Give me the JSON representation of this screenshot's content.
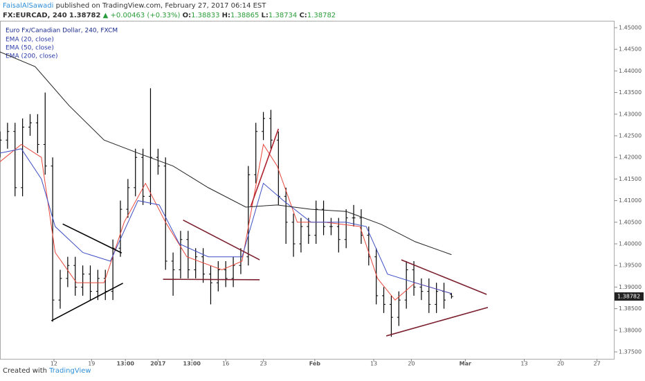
{
  "header": {
    "author": "FaisalAlSawadi",
    "published": " published on TradingView.com, February 27, 2017 06:14 EST",
    "symbol": "FX:EURCAD, 240",
    "last": "1.38782",
    "change": "▲ +0.00463 (+0.33%)",
    "open_label": "O:",
    "open": "1.38833",
    "high_label": "H:",
    "high": "1.38865",
    "low_label": "L:",
    "low": "1.38734",
    "close_label": "C:",
    "close": "1.38782"
  },
  "footer": {
    "created": "Created with",
    "brand": "TradingView"
  },
  "chart_data": {
    "type": "ohlc",
    "title": "Euro Fx/Canadian Dollar, 240, FXCM",
    "color": "#000000",
    "x": [
      0,
      6,
      12,
      18,
      24,
      30,
      36,
      42,
      48,
      54,
      60,
      66,
      72,
      78,
      84,
      90,
      96,
      102,
      108,
      114,
      120,
      126,
      132,
      138,
      144,
      150,
      156,
      162,
      168,
      174,
      180,
      186,
      192,
      198,
      204,
      210,
      216,
      222,
      228,
      234,
      240,
      246,
      252,
      258,
      264,
      270,
      276,
      282,
      288,
      294,
      300,
      306,
      312,
      318,
      324,
      330,
      336,
      342,
      348,
      354,
      360
    ],
    "open": [
      1.422,
      1.424,
      1.426,
      1.413,
      1.427,
      1.428,
      1.423,
      1.418,
      1.387,
      1.392,
      1.395,
      1.39,
      1.393,
      1.389,
      1.392,
      1.389,
      1.399,
      1.408,
      1.413,
      1.42,
      1.411,
      1.42,
      1.418,
      1.396,
      1.394,
      1.401,
      1.394,
      1.397,
      1.393,
      1.391,
      1.394,
      1.392,
      1.395,
      1.397,
      1.416,
      1.426,
      1.429,
      1.424,
      1.411,
      1.405,
      1.4,
      1.404,
      1.402,
      1.408,
      1.404,
      1.404,
      1.401,
      1.406,
      1.406,
      1.402,
      1.397,
      1.388,
      1.386,
      1.383,
      1.387,
      1.394,
      1.39,
      1.389,
      1.386,
      1.389,
      1.38833
    ],
    "high": [
      1.426,
      1.428,
      1.428,
      1.429,
      1.43,
      1.43,
      1.435,
      1.42,
      1.394,
      1.397,
      1.397,
      1.395,
      1.395,
      1.394,
      1.394,
      1.401,
      1.41,
      1.415,
      1.422,
      1.422,
      1.436,
      1.422,
      1.42,
      1.398,
      1.403,
      1.403,
      1.399,
      1.399,
      1.395,
      1.396,
      1.396,
      1.397,
      1.399,
      1.418,
      1.428,
      1.4305,
      1.431,
      1.426,
      1.413,
      1.407,
      1.406,
      1.406,
      1.41,
      1.41,
      1.406,
      1.406,
      1.408,
      1.409,
      1.408,
      1.404,
      1.399,
      1.39,
      1.388,
      1.389,
      1.396,
      1.396,
      1.392,
      1.392,
      1.391,
      1.391,
      1.38865
    ],
    "low": [
      1.42,
      1.422,
      1.411,
      1.411,
      1.425,
      1.421,
      1.416,
      1.382,
      1.385,
      1.39,
      1.388,
      1.388,
      1.387,
      1.387,
      1.387,
      1.387,
      1.397,
      1.406,
      1.411,
      1.409,
      1.409,
      1.416,
      1.394,
      1.388,
      1.392,
      1.392,
      1.392,
      1.391,
      1.386,
      1.389,
      1.39,
      1.39,
      1.393,
      1.395,
      1.414,
      1.424,
      1.422,
      1.409,
      1.4,
      1.397,
      1.398,
      1.4,
      1.4,
      1.402,
      1.402,
      1.398,
      1.399,
      1.404,
      1.4,
      1.395,
      1.386,
      1.384,
      1.3785,
      1.381,
      1.385,
      1.388,
      1.387,
      1.384,
      1.384,
      1.385,
      1.38734
    ],
    "close": [
      1.424,
      1.426,
      1.413,
      1.427,
      1.428,
      1.423,
      1.418,
      1.387,
      1.392,
      1.395,
      1.39,
      1.393,
      1.389,
      1.392,
      1.389,
      1.399,
      1.408,
      1.413,
      1.42,
      1.411,
      1.42,
      1.418,
      1.396,
      1.394,
      1.401,
      1.394,
      1.397,
      1.393,
      1.391,
      1.394,
      1.392,
      1.395,
      1.397,
      1.416,
      1.426,
      1.429,
      1.424,
      1.411,
      1.405,
      1.4,
      1.404,
      1.402,
      1.408,
      1.404,
      1.404,
      1.401,
      1.406,
      1.406,
      1.402,
      1.397,
      1.388,
      1.386,
      1.383,
      1.387,
      1.394,
      1.39,
      1.389,
      1.386,
      1.389,
      1.387,
      1.38782
    ],
    "last_price": 1.38782,
    "series": [
      {
        "name": "EMA (20, close)",
        "color": "#e8463b",
        "x": [
          0,
          17,
          33,
          44,
          61,
          83,
          99,
          116,
          132,
          149,
          177,
          193,
          210,
          221,
          237,
          259,
          287,
          301,
          315,
          331,
          360
        ],
        "values": [
          1.419,
          1.423,
          1.42,
          1.398,
          1.391,
          1.391,
          1.405,
          1.414,
          1.405,
          1.397,
          1.394,
          1.396,
          1.423,
          1.418,
          1.405,
          1.405,
          1.404,
          1.392,
          1.387,
          1.391,
          1.3885
        ]
      },
      {
        "name": "EMA (50, close)",
        "color": "#3d4fc4",
        "x": [
          0,
          17,
          33,
          44,
          66,
          88,
          110,
          127,
          143,
          166,
          193,
          210,
          226,
          248,
          276,
          292,
          309,
          331,
          360
        ],
        "values": [
          1.421,
          1.422,
          1.415,
          1.404,
          1.398,
          1.396,
          1.41,
          1.409,
          1.4,
          1.397,
          1.397,
          1.414,
          1.41,
          1.405,
          1.405,
          1.404,
          1.393,
          1.391,
          1.3885
        ]
      },
      {
        "name": "EMA (200, close)",
        "color": "#222222",
        "x": [
          0,
          28,
          55,
          83,
          110,
          138,
          166,
          196,
          221,
          248,
          276,
          304,
          331,
          360
        ],
        "values": [
          1.4444,
          1.441,
          1.432,
          1.424,
          1.421,
          1.418,
          1.413,
          1.4085,
          1.409,
          1.408,
          1.4075,
          1.4045,
          1.4005,
          1.3975
        ]
      }
    ],
    "drawings": [
      {
        "color": "#000000",
        "x": [
          50,
          97
        ],
        "y": [
          1.4046,
          1.3979
        ]
      },
      {
        "color": "#000000",
        "x": [
          41,
          98
        ],
        "y": [
          1.3822,
          1.3909
        ]
      },
      {
        "color": "#7b1f2e",
        "x": [
          146,
          207
        ],
        "y": [
          1.4055,
          1.3963
        ]
      },
      {
        "color": "#7b1f2e",
        "x": [
          130,
          207
        ],
        "y": [
          1.3918,
          1.3917
        ]
      },
      {
        "color": "#b0202e",
        "x": [
          200,
          222
        ],
        "y": [
          1.4087,
          1.4266
        ]
      },
      {
        "color": "#7b1f2e",
        "x": [
          320,
          388
        ],
        "y": [
          1.3963,
          1.3883
        ]
      },
      {
        "color": "#7b1f2e",
        "x": [
          308,
          389
        ],
        "y": [
          1.3787,
          1.3853
        ]
      }
    ],
    "xlim": [
      0,
      490
    ],
    "ylim": [
      1.3734,
      1.4516
    ],
    "xticks": [
      {
        "value": 43,
        "label": "12"
      },
      {
        "value": 73,
        "label": "19"
      },
      {
        "value": 100,
        "label": "13:00"
      },
      {
        "value": 126,
        "label": "2017"
      },
      {
        "value": 153,
        "label": "13:00"
      },
      {
        "value": 180,
        "label": "16"
      },
      {
        "value": 210,
        "label": "23"
      },
      {
        "value": 251,
        "label": "Feb"
      },
      {
        "value": 298,
        "label": "13"
      },
      {
        "value": 328,
        "label": "20"
      },
      {
        "value": 371,
        "label": "Mar"
      },
      {
        "value": 418,
        "label": "13"
      },
      {
        "value": 447,
        "label": "20"
      },
      {
        "value": 476,
        "label": "27"
      }
    ],
    "yticks": [
      {
        "value": 1.45,
        "label": "1.45000"
      },
      {
        "value": 1.445,
        "label": "1.44500"
      },
      {
        "value": 1.44,
        "label": "1.44000"
      },
      {
        "value": 1.435,
        "label": "1.43500"
      },
      {
        "value": 1.43,
        "label": "1.43000"
      },
      {
        "value": 1.425,
        "label": "1.42500"
      },
      {
        "value": 1.42,
        "label": "1.42000"
      },
      {
        "value": 1.415,
        "label": "1.41500"
      },
      {
        "value": 1.41,
        "label": "1.41000"
      },
      {
        "value": 1.405,
        "label": "1.40500"
      },
      {
        "value": 1.4,
        "label": "1.40000"
      },
      {
        "value": 1.395,
        "label": "1.39500"
      },
      {
        "value": 1.39,
        "label": "1.39000"
      },
      {
        "value": 1.385,
        "label": "1.38500"
      },
      {
        "value": 1.38,
        "label": "1.38000"
      },
      {
        "value": 1.375,
        "label": "1.37500"
      }
    ]
  }
}
